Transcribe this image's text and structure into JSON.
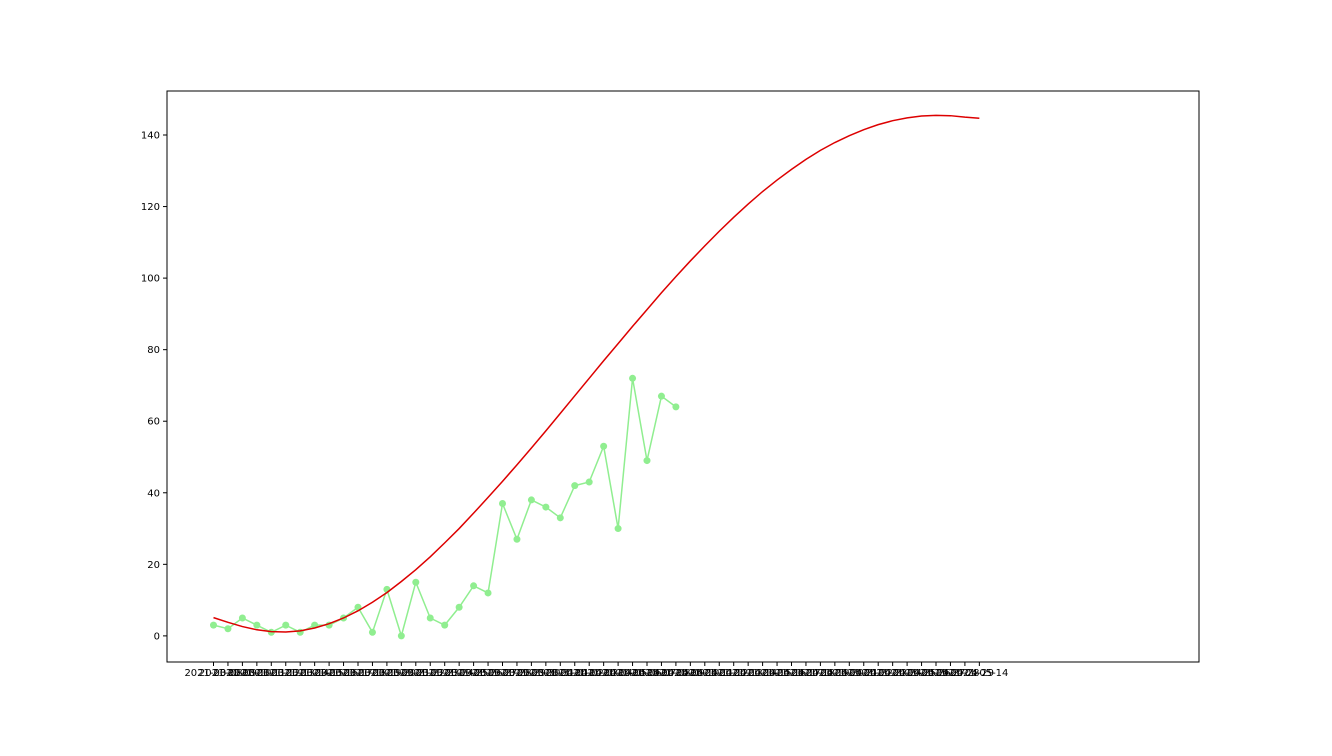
{
  "chart_data": {
    "type": "line",
    "title": "",
    "xlabel": "",
    "ylabel": "",
    "x_axis_kind": "date",
    "x_first_tick": "2021-03-08",
    "x_last_tick": "2021-05-14",
    "ylim": [
      -7.3,
      152.3
    ],
    "yticks": [
      0,
      20,
      40,
      60,
      80,
      100,
      120,
      140
    ],
    "grid": false,
    "legend": "none",
    "colors": {
      "observed": "#90ee90",
      "fit": "#dd0000"
    },
    "series": [
      {
        "kind": "observed",
        "style": "line-markers",
        "values": [
          3,
          2,
          5,
          3,
          1,
          3,
          1,
          3,
          3,
          5,
          8,
          1,
          13,
          0,
          15,
          5,
          3,
          8,
          14,
          12,
          37,
          27,
          38,
          36,
          33,
          42,
          43,
          53,
          30,
          72,
          49,
          67,
          64
        ]
      },
      {
        "kind": "fit",
        "style": "line",
        "values": [
          5.1,
          3.8,
          2.6,
          1.7,
          1.2,
          1.1,
          1.4,
          2.2,
          3.4,
          5.0,
          7.0,
          9.4,
          12.1,
          15.2,
          18.5,
          22.1,
          26.0,
          30.0,
          34.3,
          38.7,
          43.2,
          47.8,
          52.5,
          57.3,
          62.2,
          67.1,
          72.0,
          76.9,
          81.7,
          86.5,
          91.2,
          95.9,
          100.4,
          104.8,
          109.0,
          113.1,
          117.0,
          120.7,
          124.2,
          127.4,
          130.4,
          133.2,
          135.7,
          137.9,
          139.8,
          141.5,
          142.9,
          144.0,
          144.8,
          145.3,
          145.5,
          145.4,
          145.0,
          144.7
        ]
      }
    ]
  }
}
